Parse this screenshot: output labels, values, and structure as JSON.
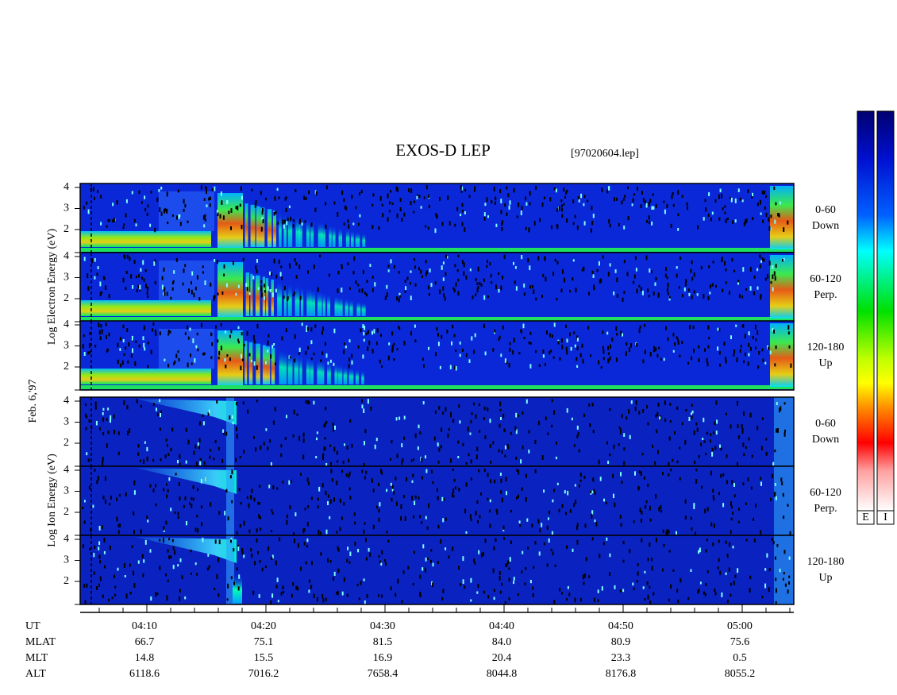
{
  "header": {
    "title": "EXOS-D LEP",
    "file": "[97020604.lep]"
  },
  "left_labels": {
    "electron": "Log Electron Energy (eV)",
    "date": "Feb. 6,'97",
    "ion": "Log Ion Energy (eV)"
  },
  "energy_ticks": [
    "4",
    "3",
    "2"
  ],
  "panels": [
    {
      "range": "0-60",
      "direction": "Down"
    },
    {
      "range": "60-120",
      "direction": "Perp."
    },
    {
      "range": "120-180",
      "direction": "Up"
    },
    {
      "range": "0-60",
      "direction": "Down"
    },
    {
      "range": "60-120",
      "direction": "Perp."
    },
    {
      "range": "120-180",
      "direction": "Up"
    }
  ],
  "ephemeris": [
    {
      "label": "UT",
      "values": [
        "04:10",
        "04:20",
        "04:30",
        "04:40",
        "04:50",
        "05:00"
      ]
    },
    {
      "label": "MLAT",
      "values": [
        "66.7",
        "75.1",
        "81.5",
        "84.0",
        "80.9",
        "75.6"
      ]
    },
    {
      "label": "MLT",
      "values": [
        "14.8",
        "15.5",
        "16.9",
        "20.4",
        "23.3",
        "0.5"
      ]
    },
    {
      "label": "ALT",
      "values": [
        "6118.6",
        "7016.2",
        "7658.4",
        "8044.8",
        "8176.8",
        "8055.2"
      ]
    }
  ],
  "colorbars": [
    "E",
    "I"
  ]
}
